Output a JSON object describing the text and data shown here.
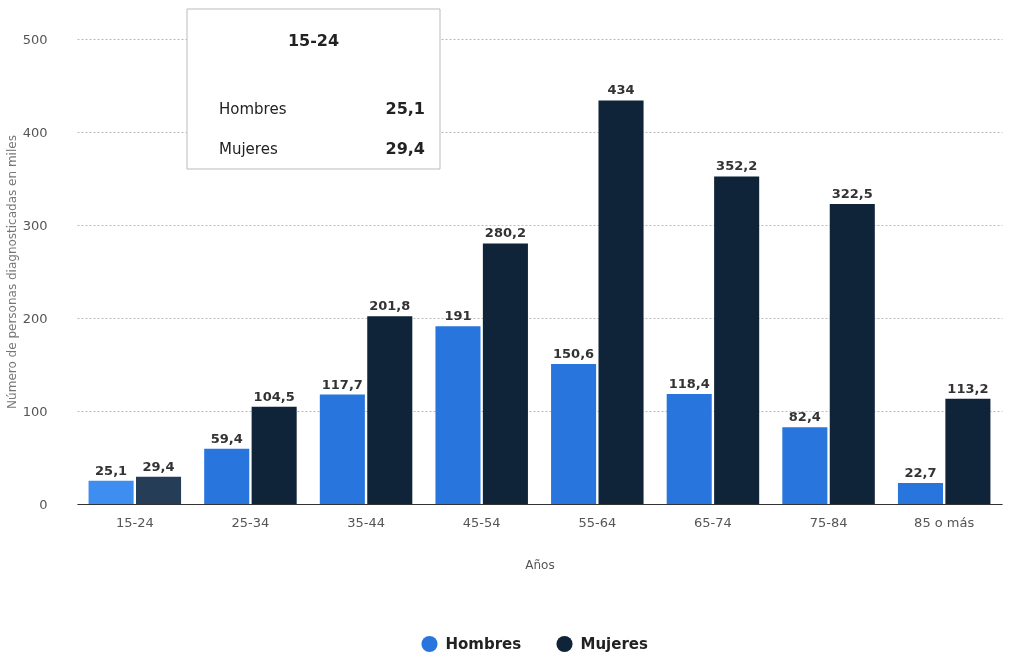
{
  "chart_data": {
    "type": "bar",
    "xlabel": "Años",
    "ylabel": "Número de personas diagnosticadas en miles",
    "categories": [
      "15-24",
      "25-34",
      "35-44",
      "45-54",
      "55-64",
      "65-74",
      "75-84",
      "85 o más"
    ],
    "series": [
      {
        "name": "Hombres",
        "color": "#2876dd",
        "colors": [
          "#3d8ef0",
          "#2876dd",
          "#2876dd",
          "#2876dd",
          "#2876dd",
          "#2876dd",
          "#2876dd",
          "#2876dd"
        ],
        "values": [
          25.1,
          59.4,
          117.7,
          191,
          150.6,
          118.4,
          82.4,
          22.7
        ],
        "value_labels": [
          "25,1",
          "59,4",
          "117,7",
          "191",
          "150,6",
          "118,4",
          "82,4",
          "22,7"
        ]
      },
      {
        "name": "Mujeres",
        "color": "#0f2339",
        "colors": [
          "#263d57",
          "#0f2339",
          "#0f2339",
          "#0f2339",
          "#0f2339",
          "#0f2339",
          "#0f2339",
          "#0f2339"
        ],
        "values": [
          29.4,
          104.5,
          201.8,
          280.2,
          434,
          352.2,
          322.5,
          113.2
        ],
        "value_labels": [
          "29,4",
          "104,5",
          "201,8",
          "280,2",
          "434",
          "352,2",
          "322,5",
          "113,2"
        ]
      }
    ],
    "ylim": [
      0,
      500
    ],
    "yticks": [
      0,
      100,
      200,
      300,
      400,
      500
    ],
    "grid": "y",
    "legend": "bottom",
    "annotations": [
      "15-24",
      "Hombres",
      "25,1",
      "Mujeres",
      "29,4"
    ]
  }
}
